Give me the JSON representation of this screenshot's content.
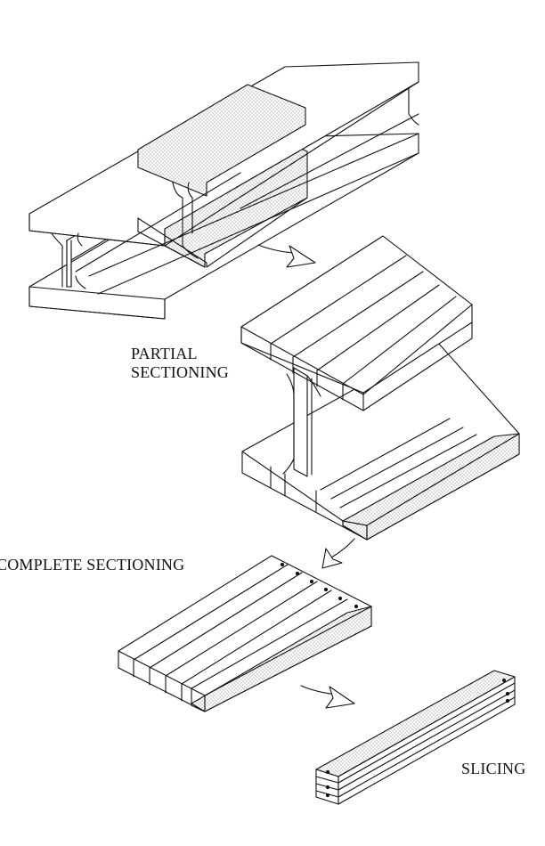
{
  "labels": {
    "partial": [
      "PARTIAL",
      "SECTIONING"
    ],
    "complete": "COMPLETE SECTIONING",
    "slicing": "SLICING"
  },
  "colors": {
    "ink": "#111111",
    "paper": "#ffffff",
    "stipple": "#555555"
  }
}
